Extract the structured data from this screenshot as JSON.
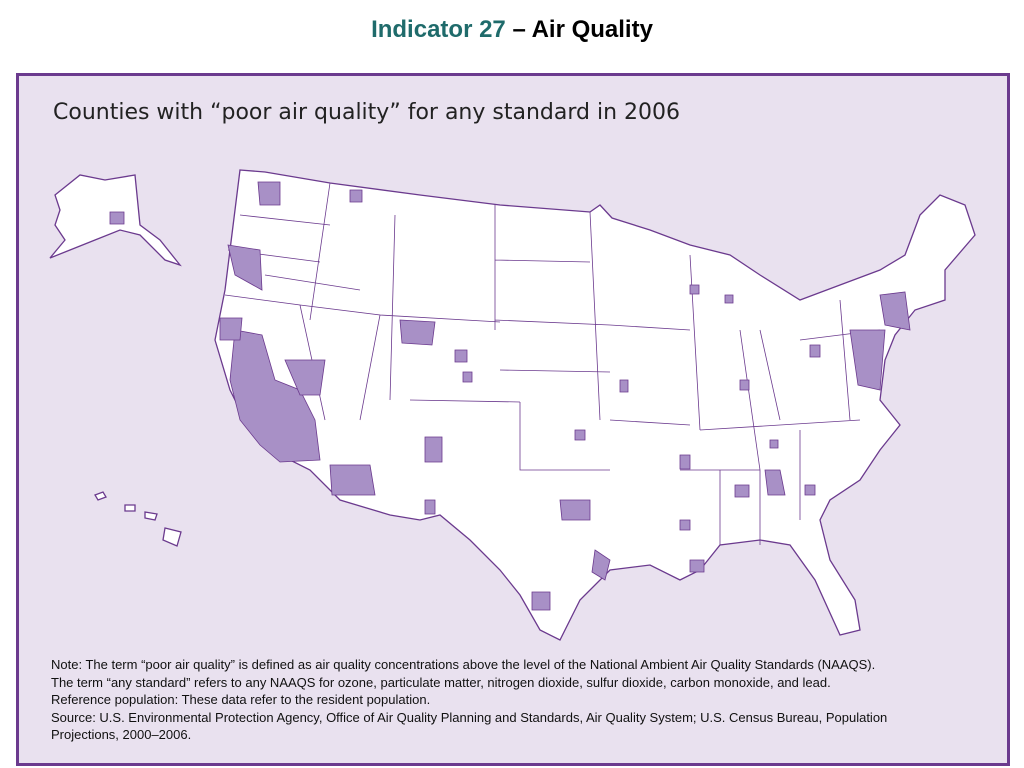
{
  "header": {
    "indicator": "Indicator 27",
    "topic": "– Air Quality"
  },
  "map": {
    "title": "Counties with “poor air quality” for any standard in 2006"
  },
  "notes": [
    "Note: The term “poor air quality” is defined as air quality concentrations above the level of the National Ambient Air Quality Standards (NAAQS).",
    "The term “any standard” refers to any NAAQS for ozone, particulate matter, nitrogen dioxide, sulfur dioxide, carbon monoxide, and lead.",
    "Reference population: These data refer to the resident population.",
    "Source: U.S. Environmental Protection Agency, Office of Air Quality Planning and Standards, Air Quality System; U.S. Census Bureau, Population",
    "Projections, 2000–2006."
  ]
}
